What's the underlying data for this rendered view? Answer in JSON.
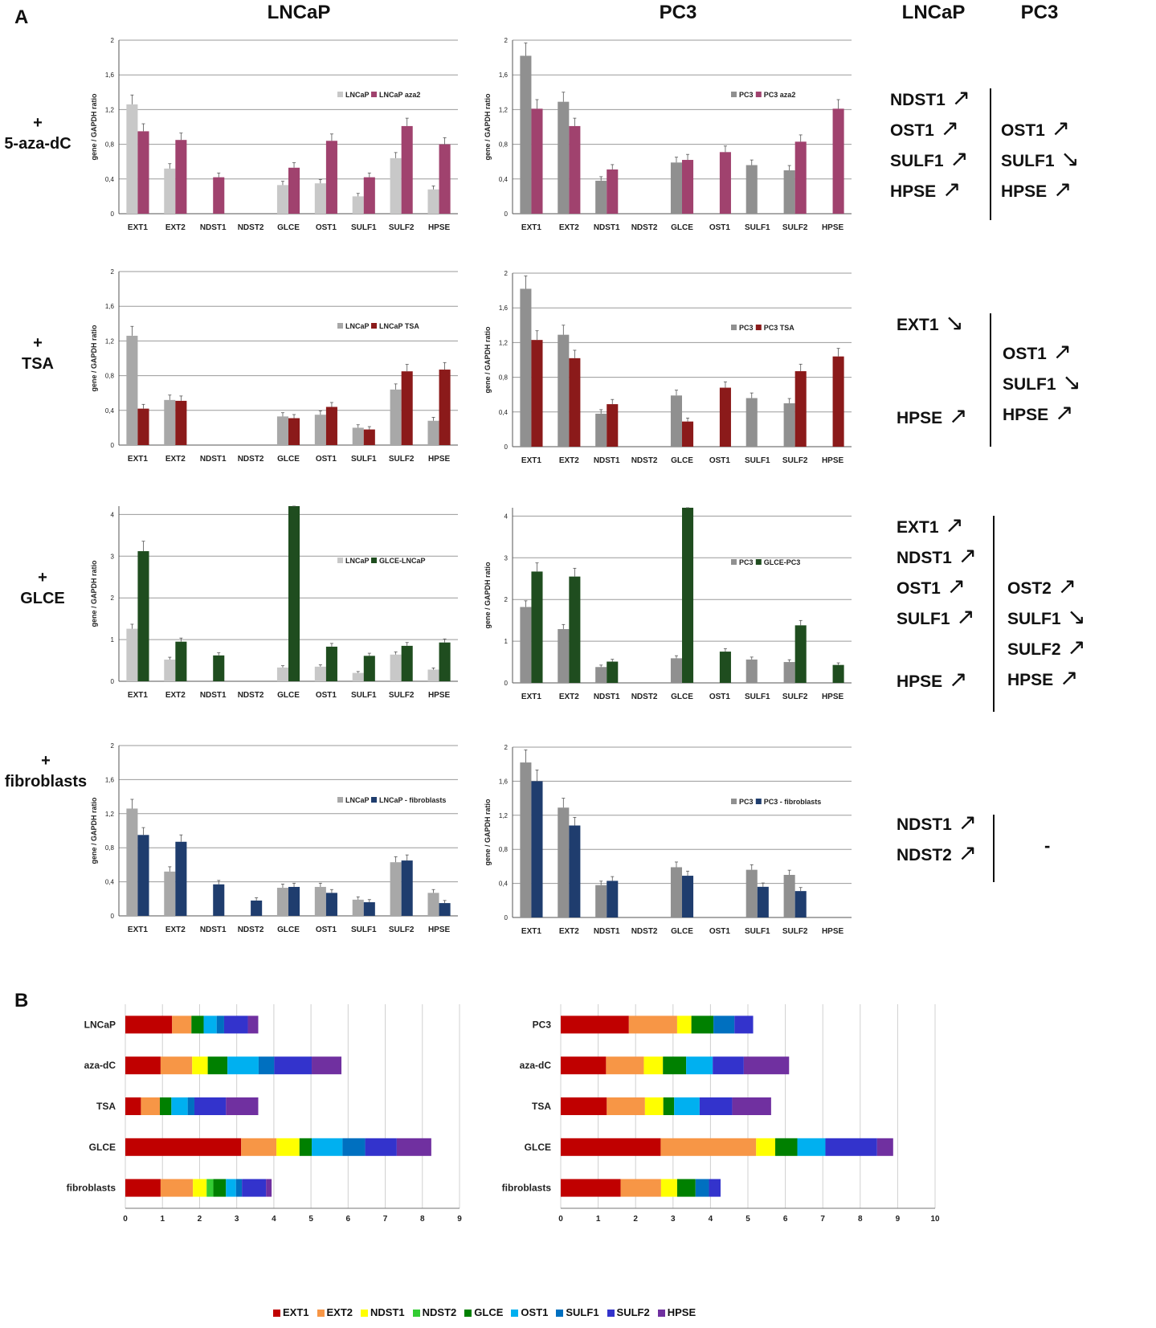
{
  "panel_labels": {
    "a": "A",
    "b": "B"
  },
  "column_titles": {
    "left": "LNCaP",
    "middle": "PC3",
    "right_lncap": "LNCaP",
    "right_pc3": "PC3"
  },
  "row_labels": [
    {
      "plus": "+",
      "text": "5-aza-dC"
    },
    {
      "plus": "+",
      "text": "TSA"
    },
    {
      "plus": "+",
      "text": "GLCE"
    },
    {
      "plus": "+",
      "text": "fibroblasts"
    }
  ],
  "summary": [
    {
      "lncap": [
        {
          "gene": "NDST1",
          "dir": "up"
        },
        {
          "gene": "OST1",
          "dir": "up"
        },
        {
          "gene": "SULF1",
          "dir": "up"
        },
        {
          "gene": "HPSE",
          "dir": "up"
        }
      ],
      "pc3": [
        {
          "gene": "OST1",
          "dir": "up"
        },
        {
          "gene": "SULF1",
          "dir": "down"
        },
        {
          "gene": "HPSE",
          "dir": "up"
        }
      ]
    },
    {
      "lncap": [
        {
          "gene": "EXT1",
          "dir": "down"
        },
        {
          "gene": "HPSE",
          "dir": "up"
        }
      ],
      "pc3": [
        {
          "gene": "OST1",
          "dir": "up"
        },
        {
          "gene": "SULF1",
          "dir": "down"
        },
        {
          "gene": "HPSE",
          "dir": "up"
        }
      ]
    },
    {
      "lncap": [
        {
          "gene": "EXT1",
          "dir": "up"
        },
        {
          "gene": "NDST1",
          "dir": "up"
        },
        {
          "gene": "OST1",
          "dir": "up"
        },
        {
          "gene": "SULF1",
          "dir": "up"
        },
        {
          "gene": "HPSE",
          "dir": "up"
        }
      ],
      "pc3": [
        {
          "gene": "OST2",
          "dir": "up"
        },
        {
          "gene": "SULF1",
          "dir": "down"
        },
        {
          "gene": "SULF2",
          "dir": "up"
        },
        {
          "gene": "HPSE",
          "dir": "up"
        }
      ]
    },
    {
      "lncap": [
        {
          "gene": "NDST1",
          "dir": "up"
        },
        {
          "gene": "NDST2",
          "dir": "up"
        }
      ],
      "pc3_dash": "-"
    }
  ],
  "chart_data": [
    {
      "id": "a-lncap-aza",
      "type": "bar",
      "ylabel": "gene / GAPDH ratio",
      "yticks": [
        "0",
        "0,4",
        "0,8",
        "1,2",
        "1,6",
        "2"
      ],
      "ylim": [
        0,
        2
      ],
      "categories": [
        "EXT1",
        "EXT2",
        "NDST1",
        "NDST2",
        "GLCE",
        "OST1",
        "SULF1",
        "SULF2",
        "HPSE"
      ],
      "series": [
        {
          "name": "LNCaP",
          "color": "#c8c8c8",
          "values": [
            1.26,
            0.52,
            0,
            0,
            0.33,
            0.35,
            0.2,
            0.64,
            0.28
          ]
        },
        {
          "name": "LNCaP aza2",
          "color": "#a0426e",
          "values": [
            0.95,
            0.85,
            0.42,
            0,
            0.53,
            0.84,
            0.42,
            1.01,
            0.8
          ]
        }
      ]
    },
    {
      "id": "a-pc3-aza",
      "type": "bar",
      "ylabel": "gene / GAPDH ratio",
      "yticks": [
        "0",
        "0,4",
        "0,8",
        "1,2",
        "1,6",
        "2"
      ],
      "ylim": [
        0,
        2
      ],
      "categories": [
        "EXT1",
        "EXT2",
        "NDST1",
        "NDST2",
        "GLCE",
        "OST1",
        "SULF1",
        "SULF2",
        "HPSE"
      ],
      "series": [
        {
          "name": "PC3",
          "color": "#909090",
          "values": [
            1.82,
            1.29,
            0.38,
            0,
            0.59,
            0,
            0.56,
            0.5,
            0
          ]
        },
        {
          "name": "PC3 aza2",
          "color": "#a0426e",
          "values": [
            1.21,
            1.01,
            0.51,
            0,
            0.62,
            0.71,
            0,
            0.83,
            1.21
          ]
        }
      ]
    },
    {
      "id": "a-lncap-tsa",
      "type": "bar",
      "ylabel": "gene / GAPDH ratio",
      "yticks": [
        "0",
        "0,4",
        "0,8",
        "1,2",
        "1,6",
        "2"
      ],
      "ylim": [
        0,
        2
      ],
      "categories": [
        "EXT1",
        "EXT2",
        "NDST1",
        "NDST2",
        "GLCE",
        "OST1",
        "SULF1",
        "SULF2",
        "HPSE"
      ],
      "series": [
        {
          "name": "LNCaP",
          "color": "#a8a8a8",
          "values": [
            1.26,
            0.52,
            0,
            0,
            0.33,
            0.35,
            0.2,
            0.64,
            0.28
          ]
        },
        {
          "name": "LNCaP TSA",
          "color": "#8b1a1a",
          "values": [
            0.42,
            0.51,
            0,
            0,
            0.31,
            0.44,
            0.18,
            0.85,
            0.87
          ]
        }
      ]
    },
    {
      "id": "a-pc3-tsa",
      "type": "bar",
      "ylabel": "gene / GAPDH ratio",
      "yticks": [
        "0",
        "0,4",
        "0,8",
        "1,2",
        "1,6",
        "2"
      ],
      "ylim": [
        0,
        2
      ],
      "categories": [
        "EXT1",
        "EXT2",
        "NDST1",
        "NDST2",
        "GLCE",
        "OST1",
        "SULF1",
        "SULF2",
        "HPSE"
      ],
      "series": [
        {
          "name": "PC3",
          "color": "#909090",
          "values": [
            1.82,
            1.29,
            0.38,
            0,
            0.59,
            0,
            0.56,
            0.5,
            0
          ]
        },
        {
          "name": "PC3 TSA",
          "color": "#8b1a1a",
          "values": [
            1.23,
            1.02,
            0.49,
            0,
            0.29,
            0.68,
            0,
            0.87,
            1.04
          ]
        }
      ]
    },
    {
      "id": "a-lncap-glce",
      "type": "bar",
      "ylabel": "gene / GAPDH ratio",
      "yticks": [
        "0",
        "1",
        "2",
        "3",
        "4"
      ],
      "ylim": [
        0,
        4.2
      ],
      "categories": [
        "EXT1",
        "EXT2",
        "NDST1",
        "NDST2",
        "GLCE",
        "OST1",
        "SULF1",
        "SULF2",
        "HPSE"
      ],
      "series": [
        {
          "name": "LNCaP",
          "color": "#c8c8c8",
          "values": [
            1.26,
            0.52,
            0,
            0,
            0.33,
            0.35,
            0.2,
            0.64,
            0.28
          ]
        },
        {
          "name": "GLCE-LNCaP",
          "color": "#1f4d1f",
          "values": [
            3.12,
            0.95,
            0.62,
            0,
            4.2,
            0.83,
            0.61,
            0.85,
            0.93
          ]
        }
      ]
    },
    {
      "id": "a-pc3-glce",
      "type": "bar",
      "ylabel": "gene / GAPDH ratio",
      "yticks": [
        "0",
        "1",
        "2",
        "3",
        "4"
      ],
      "ylim": [
        0,
        4.2
      ],
      "categories": [
        "EXT1",
        "EXT2",
        "NDST1",
        "NDST2",
        "GLCE",
        "OST1",
        "SULF1",
        "SULF2",
        "HPSE"
      ],
      "series": [
        {
          "name": "PC3",
          "color": "#909090",
          "values": [
            1.82,
            1.29,
            0.38,
            0,
            0.59,
            0,
            0.56,
            0.5,
            0
          ]
        },
        {
          "name": "GLCE-PC3",
          "color": "#1f4d1f",
          "values": [
            2.67,
            2.55,
            0.51,
            0,
            4.2,
            0.75,
            0,
            1.38,
            0.43
          ]
        }
      ]
    },
    {
      "id": "a-lncap-fib",
      "type": "bar",
      "ylabel": "gene / GAPDH ratio",
      "yticks": [
        "0",
        "0,4",
        "0,8",
        "1,2",
        "1,6",
        "2"
      ],
      "ylim": [
        0,
        2
      ],
      "categories": [
        "EXT1",
        "EXT2",
        "NDST1",
        "NDST2",
        "GLCE",
        "OST1",
        "SULF1",
        "SULF2",
        "HPSE"
      ],
      "series": [
        {
          "name": "LNCaP",
          "color": "#a8a8a8",
          "values": [
            1.26,
            0.52,
            0,
            0,
            0.33,
            0.34,
            0.19,
            0.63,
            0.27
          ]
        },
        {
          "name": "LNCaP - fibroblasts",
          "color": "#1f3d6e",
          "values": [
            0.95,
            0.87,
            0.37,
            0.18,
            0.34,
            0.27,
            0.16,
            0.65,
            0.15
          ]
        }
      ]
    },
    {
      "id": "a-pc3-fib",
      "type": "bar",
      "ylabel": "gene / GAPDH ratio",
      "yticks": [
        "0",
        "0,4",
        "0,8",
        "1,2",
        "1,6",
        "2"
      ],
      "ylim": [
        0,
        2
      ],
      "categories": [
        "EXT1",
        "EXT2",
        "NDST1",
        "NDST2",
        "GLCE",
        "OST1",
        "SULF1",
        "SULF2",
        "HPSE"
      ],
      "series": [
        {
          "name": "PC3",
          "color": "#909090",
          "values": [
            1.82,
            1.29,
            0.38,
            0,
            0.59,
            0,
            0.56,
            0.5,
            0
          ]
        },
        {
          "name": "PC3 - fibroblasts",
          "color": "#1f3d6e",
          "values": [
            1.6,
            1.08,
            0.43,
            0,
            0.49,
            0,
            0.36,
            0.31,
            0
          ]
        }
      ]
    },
    {
      "id": "b-lncap",
      "type": "bar",
      "orientation": "horizontal",
      "stacked": true,
      "xlim": [
        0,
        9
      ],
      "xticks": [
        "0",
        "1",
        "2",
        "3",
        "4",
        "5",
        "6",
        "7",
        "8",
        "9"
      ],
      "categories": [
        "LNCaP",
        "aza-dC",
        "TSA",
        "GLCE",
        "fibroblasts"
      ],
      "series": [
        {
          "name": "EXT1",
          "color": "#c00000",
          "values": [
            1.26,
            0.95,
            0.42,
            3.12,
            0.95
          ]
        },
        {
          "name": "EXT2",
          "color": "#f79646",
          "values": [
            0.52,
            0.85,
            0.51,
            0.95,
            0.87
          ]
        },
        {
          "name": "NDST1",
          "color": "#ffff00",
          "values": [
            0,
            0.42,
            0,
            0.62,
            0.37
          ]
        },
        {
          "name": "NDST2",
          "color": "#33cc33",
          "values": [
            0,
            0,
            0,
            0,
            0.18
          ]
        },
        {
          "name": "GLCE",
          "color": "#008000",
          "values": [
            0.33,
            0.53,
            0.31,
            0.33,
            0.34
          ]
        },
        {
          "name": "OST1",
          "color": "#00b0f0",
          "values": [
            0.35,
            0.84,
            0.44,
            0.83,
            0.27
          ]
        },
        {
          "name": "SULF1",
          "color": "#0070c0",
          "values": [
            0.2,
            0.42,
            0.18,
            0.61,
            0.16
          ]
        },
        {
          "name": "SULF2",
          "color": "#3333cc",
          "values": [
            0.64,
            1.01,
            0.85,
            0.85,
            0.65
          ]
        },
        {
          "name": "HPSE",
          "color": "#7030a0",
          "values": [
            0.28,
            0.8,
            0.87,
            0.93,
            0.15
          ]
        }
      ]
    },
    {
      "id": "b-pc3",
      "type": "bar",
      "orientation": "horizontal",
      "stacked": true,
      "xlim": [
        0,
        10
      ],
      "xticks": [
        "0",
        "1",
        "2",
        "3",
        "4",
        "5",
        "6",
        "7",
        "8",
        "9",
        "10"
      ],
      "categories": [
        "PC3",
        "aza-dC",
        "TSA",
        "GLCE",
        "fibroblasts"
      ],
      "series": [
        {
          "name": "EXT1",
          "color": "#c00000",
          "values": [
            1.82,
            1.21,
            1.23,
            2.67,
            1.6
          ]
        },
        {
          "name": "EXT2",
          "color": "#f79646",
          "values": [
            1.29,
            1.01,
            1.02,
            2.55,
            1.08
          ]
        },
        {
          "name": "NDST1",
          "color": "#ffff00",
          "values": [
            0.38,
            0.51,
            0.49,
            0.51,
            0.43
          ]
        },
        {
          "name": "NDST2",
          "color": "#33cc33",
          "values": [
            0,
            0,
            0,
            0,
            0
          ]
        },
        {
          "name": "GLCE",
          "color": "#008000",
          "values": [
            0.59,
            0.62,
            0.29,
            0.59,
            0.49
          ]
        },
        {
          "name": "OST1",
          "color": "#00b0f0",
          "values": [
            0,
            0.71,
            0.68,
            0.75,
            0
          ]
        },
        {
          "name": "SULF1",
          "color": "#0070c0",
          "values": [
            0.56,
            0,
            0,
            0,
            0.36
          ]
        },
        {
          "name": "SULF2",
          "color": "#3333cc",
          "values": [
            0.5,
            0.83,
            0.87,
            1.38,
            0.31
          ]
        },
        {
          "name": "HPSE",
          "color": "#7030a0",
          "values": [
            0,
            1.21,
            1.04,
            0.43,
            0
          ]
        }
      ]
    }
  ],
  "legend_b": [
    {
      "name": "EXT1",
      "color": "#c00000"
    },
    {
      "name": "EXT2",
      "color": "#f79646"
    },
    {
      "name": "NDST1",
      "color": "#ffff00"
    },
    {
      "name": "NDST2",
      "color": "#33cc33"
    },
    {
      "name": "GLCE",
      "color": "#008000"
    },
    {
      "name": "OST1",
      "color": "#00b0f0"
    },
    {
      "name": "SULF1",
      "color": "#0070c0"
    },
    {
      "name": "SULF2",
      "color": "#3333cc"
    },
    {
      "name": "HPSE",
      "color": "#7030a0"
    }
  ]
}
